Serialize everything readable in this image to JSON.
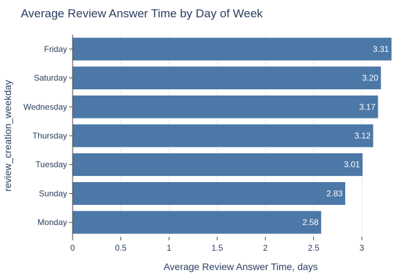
{
  "chart_data": {
    "type": "bar",
    "orientation": "horizontal",
    "title": "Average Review Answer Time by Day of Week",
    "xlabel": "Average Review Answer Time, days",
    "ylabel": "review_creation_weekday",
    "categories": [
      "Friday",
      "Saturday",
      "Wednesday",
      "Thursday",
      "Tuesday",
      "Sunday",
      "Monday"
    ],
    "values": [
      3.31,
      3.2,
      3.17,
      3.12,
      3.01,
      2.83,
      2.58
    ],
    "data_labels": [
      "3.31",
      "3.20",
      "3.17",
      "3.12",
      "3.01",
      "2.83",
      "2.58"
    ],
    "xlim": [
      0,
      3.48
    ],
    "xticks": [
      0,
      0.5,
      1,
      1.5,
      2,
      2.5,
      3
    ],
    "xtick_labels": [
      "0",
      "0.5",
      "1",
      "1.5",
      "2",
      "2.5",
      "3"
    ],
    "bar_color": "#4c78a8",
    "grid": true
  }
}
